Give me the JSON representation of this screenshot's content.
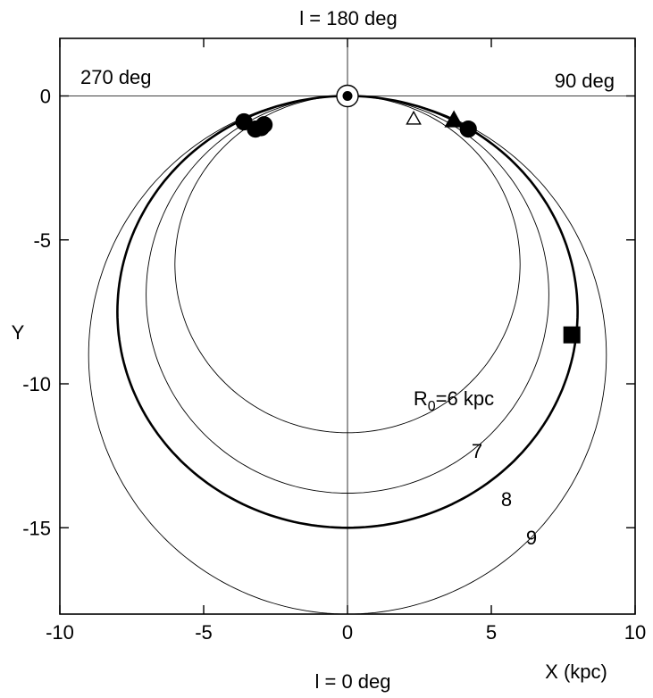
{
  "chart_data": {
    "type": "line",
    "title": "",
    "xlabel": "X (kpc)",
    "ylabel": "Y",
    "xlim": [
      -10,
      10
    ],
    "ylim": [
      -18,
      2
    ],
    "x_ticks": [
      -10,
      -5,
      0,
      5,
      10
    ],
    "y_ticks": [
      0,
      -5,
      -10,
      -15
    ],
    "grid": false,
    "direction_labels": {
      "top": "l = 180 deg",
      "bottom": "l = 0 deg",
      "left": "270 deg",
      "right": "90 deg"
    },
    "series": [
      {
        "label": "R0=6 kpc",
        "label_main": "R",
        "label_sub": "0",
        "label_suffix": "=6 kpc",
        "R0": 6,
        "ry": 11.7,
        "bold": false
      },
      {
        "label": "7",
        "R0": 7,
        "ry": 13.8,
        "bold": false
      },
      {
        "label": "8",
        "R0": 8,
        "ry": 15.0,
        "bold": true
      },
      {
        "label": "9",
        "R0": 9,
        "ry": 18.0,
        "bold": false
      }
    ],
    "points": [
      {
        "marker": "circle",
        "filled": true,
        "x": -3.6,
        "y": -0.9
      },
      {
        "marker": "circle",
        "filled": true,
        "x": -3.2,
        "y": -1.15
      },
      {
        "marker": "circle",
        "filled": true,
        "x": -2.9,
        "y": -1.0
      },
      {
        "marker": "circle",
        "filled": true,
        "x": -3.0,
        "y": -1.1
      },
      {
        "marker": "triangle",
        "filled": false,
        "x": 2.3,
        "y": -0.8
      },
      {
        "marker": "triangle",
        "filled": true,
        "x": 3.7,
        "y": -0.85
      },
      {
        "marker": "circle",
        "filled": true,
        "x": 4.2,
        "y": -1.15
      },
      {
        "marker": "square",
        "filled": true,
        "x": 7.8,
        "y": -8.3
      }
    ],
    "sun": {
      "x": 0,
      "y": 0
    }
  }
}
